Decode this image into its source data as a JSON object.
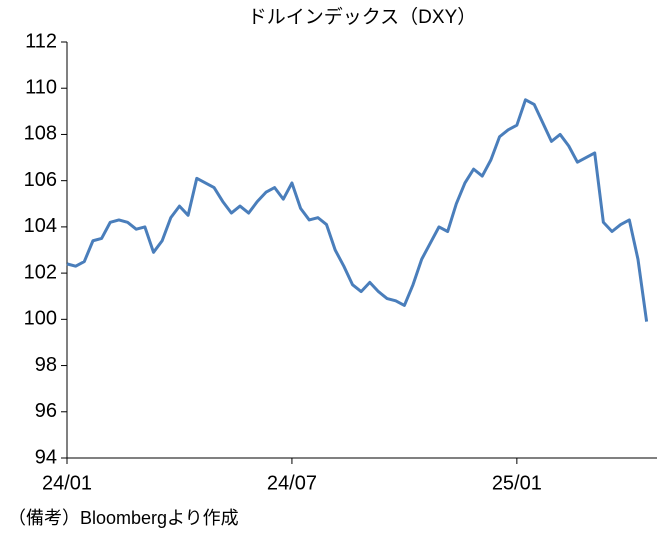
{
  "chart_data": {
    "type": "line",
    "title": "ドルインデックス（DXY）",
    "note": "（備考）Bloombergより作成",
    "categories": [
      "24/01",
      null,
      null,
      null,
      null,
      null,
      null,
      null,
      null,
      null,
      null,
      null,
      null,
      null,
      null,
      null,
      null,
      null,
      null,
      null,
      null,
      null,
      null,
      null,
      null,
      null,
      "24/07",
      null,
      null,
      null,
      null,
      null,
      null,
      null,
      null,
      null,
      null,
      null,
      null,
      null,
      null,
      null,
      null,
      null,
      null,
      null,
      null,
      null,
      null,
      null,
      null,
      null,
      "25/01",
      null,
      null,
      null,
      null,
      null,
      null,
      null,
      null,
      null,
      null,
      null,
      null,
      null,
      null,
      null
    ],
    "series": [
      {
        "name": "DXY",
        "color": "#4a7ebb",
        "values": [
          102.4,
          102.3,
          102.5,
          103.4,
          103.5,
          104.2,
          104.3,
          104.2,
          103.9,
          104.0,
          102.9,
          103.4,
          104.4,
          104.9,
          104.5,
          106.1,
          105.9,
          105.7,
          105.1,
          104.6,
          104.9,
          104.6,
          105.1,
          105.5,
          105.7,
          105.2,
          105.9,
          104.8,
          104.3,
          104.4,
          104.1,
          103.0,
          102.3,
          101.5,
          101.2,
          101.6,
          101.2,
          100.9,
          100.8,
          100.6,
          101.5,
          102.6,
          103.3,
          104.0,
          103.8,
          105.0,
          105.9,
          106.5,
          106.2,
          106.9,
          107.9,
          108.2,
          108.4,
          109.5,
          109.3,
          108.5,
          107.7,
          108.0,
          107.5,
          106.8,
          107.0,
          107.2,
          104.2,
          103.8,
          104.1,
          104.3,
          102.6,
          99.9
        ]
      }
    ],
    "ylim": [
      94,
      112
    ],
    "yticks": [
      94,
      96,
      98,
      100,
      102,
      104,
      106,
      108,
      110,
      112
    ]
  }
}
